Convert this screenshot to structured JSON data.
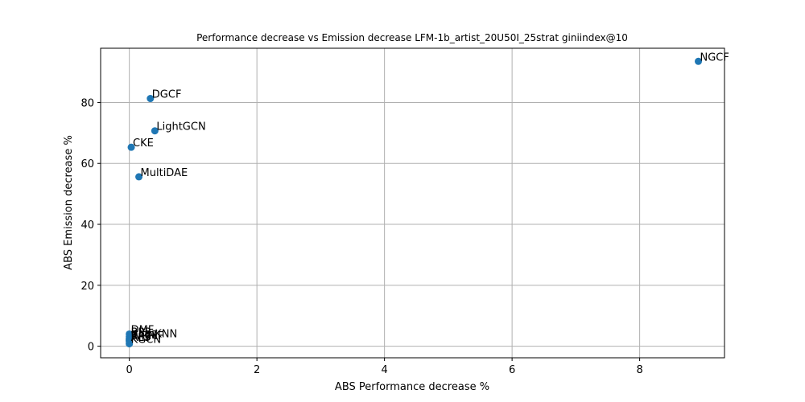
{
  "chart_data": {
    "type": "scatter",
    "title": "Performance decrease vs Emission decrease LFM-1b_artist_20U50I_25strat giniindex@10",
    "xlabel": "ABS Performance decrease %",
    "ylabel": "ABS Emission decrease %",
    "xlim": [
      -0.45,
      9.33
    ],
    "ylim": [
      -3.8,
      97.8
    ],
    "xticks": [
      "0",
      "2",
      "4",
      "6",
      "8"
    ],
    "yticks": [
      "0",
      "20",
      "40",
      "60",
      "80"
    ],
    "grid": true,
    "color": "#1f77b4",
    "points": [
      {
        "label": "NGCF",
        "x": 8.92,
        "y": 93.5
      },
      {
        "label": "DGCF",
        "x": 0.33,
        "y": 81.3
      },
      {
        "label": "LightGCN",
        "x": 0.4,
        "y": 70.7
      },
      {
        "label": "CKE",
        "x": 0.03,
        "y": 65.3
      },
      {
        "label": "MultiDAE",
        "x": 0.15,
        "y": 55.6
      },
      {
        "label": "DMF",
        "x": 0.0,
        "y": 4.0
      },
      {
        "label": "BPR",
        "x": 0.0,
        "y": 3.2
      },
      {
        "label": "ItemKNN",
        "x": 0.0,
        "y": 2.6
      },
      {
        "label": "EASE",
        "x": 0.0,
        "y": 2.3
      },
      {
        "label": "WRMF",
        "x": 0.0,
        "y": 2.0
      },
      {
        "label": "RP3",
        "x": 0.0,
        "y": 1.8
      },
      {
        "label": "ALS",
        "x": 0.0,
        "y": 1.5
      },
      {
        "label": "KGCN",
        "x": 0.0,
        "y": 0.8
      }
    ]
  }
}
